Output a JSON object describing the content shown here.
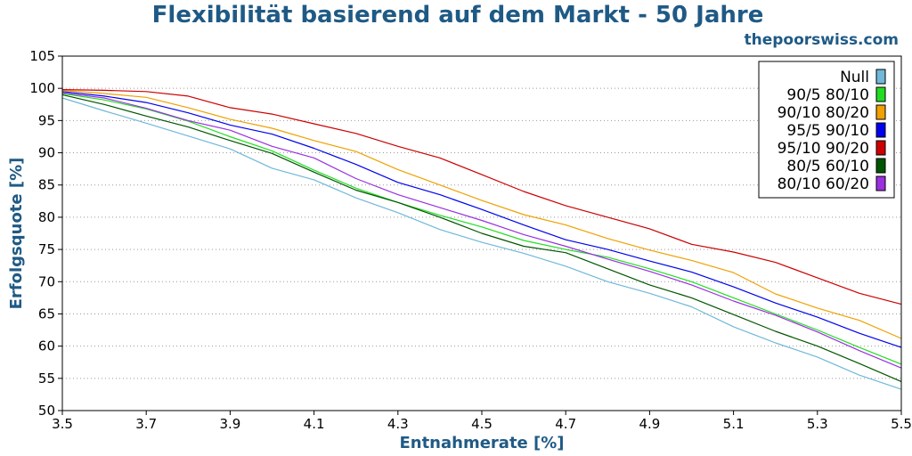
{
  "chart_data": {
    "type": "line",
    "title": "Flexibilität basierend auf dem Markt - 50 Jahre",
    "source": "thepoorswiss.com",
    "xlabel": "Entnahmerate [%]",
    "ylabel": "Erfolgsquote [%]",
    "xlim": [
      3.5,
      5.5
    ],
    "ylim": [
      50,
      105
    ],
    "xticks": [
      3.5,
      3.7,
      3.9,
      4.1,
      4.3,
      4.5,
      4.7,
      4.9,
      5.1,
      5.3,
      5.5
    ],
    "yticks": [
      50,
      55,
      60,
      65,
      70,
      75,
      80,
      85,
      90,
      95,
      100,
      105
    ],
    "grid": "horizontal dotted",
    "legend_position": "top-right",
    "x": [
      3.5,
      3.6,
      3.7,
      3.8,
      3.9,
      4.0,
      4.1,
      4.2,
      4.3,
      4.4,
      4.5,
      4.6,
      4.7,
      4.8,
      4.9,
      5.0,
      5.1,
      5.2,
      5.3,
      5.4,
      5.5
    ],
    "series": [
      {
        "name": "Null",
        "color": "#6fb8d8",
        "values": [
          98.5,
          96.5,
          94.6,
          92.6,
          90.6,
          87.6,
          85.8,
          83.0,
          80.7,
          78.1,
          76.1,
          74.4,
          72.4,
          70.0,
          68.2,
          66.1,
          63.0,
          60.5,
          58.3,
          55.5,
          53.3
        ]
      },
      {
        "name": "90/5 80/10",
        "color": "#22dd22",
        "values": [
          99.2,
          98.2,
          96.8,
          94.9,
          92.5,
          90.3,
          87.3,
          84.5,
          82.3,
          80.3,
          78.5,
          76.4,
          75.0,
          73.8,
          72.0,
          70.0,
          67.5,
          65.0,
          62.5,
          59.8,
          57.2
        ]
      },
      {
        "name": "90/10 80/20",
        "color": "#f0a000",
        "values": [
          99.7,
          99.2,
          98.6,
          97.0,
          95.2,
          93.8,
          91.9,
          90.2,
          87.4,
          85.0,
          82.6,
          80.4,
          78.8,
          76.7,
          74.9,
          73.3,
          71.4,
          68.1,
          65.9,
          64.0,
          61.2
        ]
      },
      {
        "name": "95/5 90/10",
        "color": "#0000ee",
        "values": [
          99.5,
          98.8,
          97.8,
          96.2,
          94.3,
          92.9,
          90.7,
          88.2,
          85.4,
          83.5,
          81.2,
          78.8,
          76.5,
          75.0,
          73.2,
          71.5,
          69.2,
          66.7,
          64.5,
          62.0,
          59.8
        ]
      },
      {
        "name": "95/10 90/20",
        "color": "#cc0000",
        "values": [
          99.8,
          99.7,
          99.5,
          98.8,
          97.0,
          96.0,
          94.5,
          93.0,
          91.0,
          89.2,
          86.6,
          84.0,
          81.8,
          80.0,
          78.2,
          75.8,
          74.6,
          73.0,
          70.6,
          68.2,
          66.5
        ]
      },
      {
        "name": "80/5 60/10",
        "color": "#005500",
        "values": [
          99.0,
          97.5,
          95.7,
          94.0,
          91.9,
          89.9,
          87.0,
          84.2,
          82.3,
          80.0,
          77.5,
          75.5,
          74.5,
          72.0,
          69.5,
          67.5,
          64.9,
          62.3,
          60.0,
          57.3,
          54.5
        ]
      },
      {
        "name": "80/10 60/20",
        "color": "#9a30e0",
        "values": [
          99.3,
          98.5,
          96.9,
          95.0,
          93.5,
          91.0,
          89.2,
          86.0,
          83.5,
          81.5,
          79.5,
          77.3,
          75.5,
          73.5,
          71.6,
          69.5,
          67.0,
          64.8,
          62.2,
          59.3,
          56.6
        ]
      }
    ]
  }
}
